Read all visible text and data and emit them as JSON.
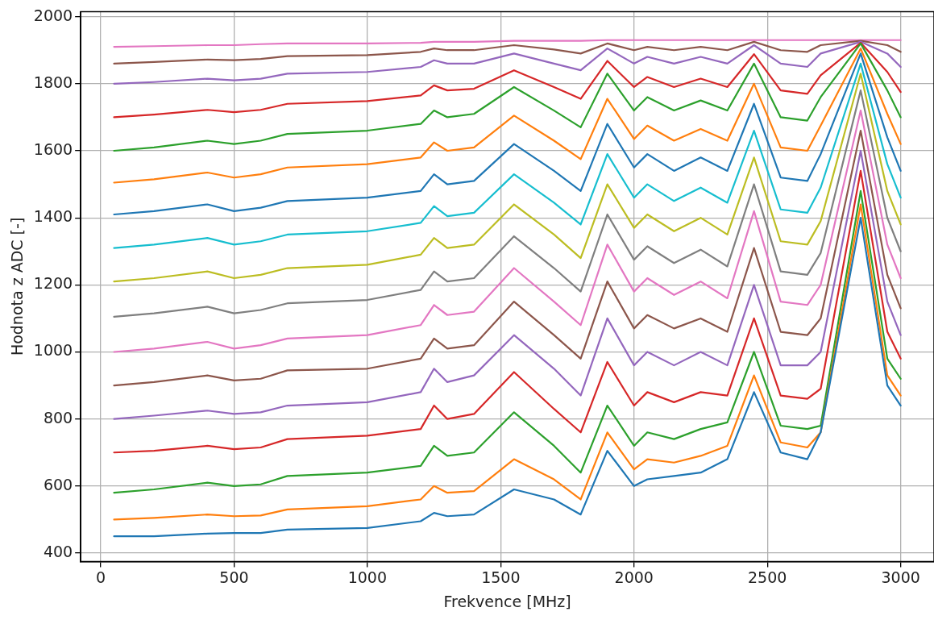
{
  "chart_data": {
    "type": "line",
    "xlabel": "Frekvence [MHz]",
    "ylabel": "Hodnota z ADC [-]",
    "x": [
      50,
      200,
      400,
      500,
      600,
      700,
      1000,
      1200,
      1250,
      1300,
      1400,
      1550,
      1700,
      1800,
      1900,
      2000,
      2050,
      2150,
      2250,
      2350,
      2450,
      2550,
      2650,
      2700,
      2850,
      2950,
      3000
    ],
    "xlim": [
      -75,
      3125
    ],
    "xticks": [
      0,
      500,
      1000,
      1500,
      2000,
      2500,
      3000
    ],
    "ylim": [
      375,
      2015
    ],
    "yticks": [
      400,
      600,
      800,
      1000,
      1200,
      1400,
      1600,
      1800,
      2000
    ],
    "grid": true,
    "legend": false,
    "marker": "none",
    "line_style": "solid",
    "series": [
      {
        "color": "#1f77b4",
        "values": [
          450,
          450,
          458,
          460,
          460,
          470,
          475,
          495,
          520,
          510,
          515,
          590,
          560,
          515,
          705,
          600,
          620,
          630,
          640,
          680,
          880,
          700,
          680,
          760,
          1400,
          900,
          840
        ]
      },
      {
        "color": "#ff7f0e",
        "values": [
          500,
          505,
          515,
          510,
          512,
          530,
          540,
          560,
          600,
          580,
          585,
          680,
          620,
          560,
          760,
          650,
          680,
          670,
          690,
          720,
          930,
          730,
          715,
          760,
          1440,
          930,
          870
        ]
      },
      {
        "color": "#2ca02c",
        "values": [
          580,
          590,
          610,
          600,
          605,
          630,
          640,
          660,
          720,
          690,
          700,
          820,
          720,
          640,
          840,
          720,
          760,
          740,
          770,
          790,
          1000,
          780,
          770,
          780,
          1480,
          980,
          920
        ]
      },
      {
        "color": "#d62728",
        "values": [
          700,
          705,
          720,
          710,
          715,
          740,
          750,
          770,
          840,
          800,
          815,
          940,
          830,
          760,
          970,
          840,
          880,
          850,
          880,
          870,
          1100,
          870,
          860,
          890,
          1540,
          1060,
          980
        ]
      },
      {
        "color": "#9467bd",
        "values": [
          800,
          810,
          825,
          815,
          820,
          840,
          850,
          880,
          950,
          910,
          930,
          1050,
          950,
          870,
          1100,
          960,
          1000,
          960,
          1000,
          960,
          1200,
          960,
          960,
          1000,
          1600,
          1150,
          1050
        ]
      },
      {
        "color": "#8c564b",
        "values": [
          900,
          910,
          930,
          915,
          920,
          945,
          950,
          980,
          1040,
          1010,
          1020,
          1150,
          1050,
          980,
          1210,
          1070,
          1110,
          1070,
          1100,
          1060,
          1310,
          1060,
          1050,
          1100,
          1660,
          1230,
          1130
        ]
      },
      {
        "color": "#e377c2",
        "values": [
          1000,
          1010,
          1030,
          1010,
          1020,
          1040,
          1050,
          1080,
          1140,
          1110,
          1120,
          1250,
          1150,
          1080,
          1320,
          1180,
          1220,
          1170,
          1210,
          1160,
          1420,
          1150,
          1140,
          1200,
          1720,
          1320,
          1220
        ]
      },
      {
        "color": "#7f7f7f",
        "values": [
          1105,
          1115,
          1135,
          1115,
          1125,
          1145,
          1155,
          1185,
          1240,
          1210,
          1220,
          1345,
          1250,
          1180,
          1410,
          1275,
          1315,
          1265,
          1305,
          1255,
          1500,
          1240,
          1230,
          1295,
          1780,
          1400,
          1300
        ]
      },
      {
        "color": "#bcbd22",
        "values": [
          1210,
          1220,
          1240,
          1220,
          1230,
          1250,
          1260,
          1290,
          1340,
          1310,
          1320,
          1440,
          1350,
          1280,
          1500,
          1370,
          1410,
          1360,
          1400,
          1350,
          1580,
          1330,
          1320,
          1390,
          1830,
          1480,
          1380
        ]
      },
      {
        "color": "#17becf",
        "values": [
          1310,
          1320,
          1340,
          1320,
          1330,
          1350,
          1360,
          1385,
          1435,
          1405,
          1415,
          1530,
          1445,
          1380,
          1590,
          1460,
          1500,
          1450,
          1490,
          1445,
          1660,
          1425,
          1415,
          1490,
          1860,
          1560,
          1460
        ]
      },
      {
        "color": "#1f77b4",
        "values": [
          1410,
          1420,
          1440,
          1420,
          1430,
          1450,
          1460,
          1480,
          1530,
          1500,
          1510,
          1620,
          1540,
          1480,
          1680,
          1550,
          1590,
          1540,
          1580,
          1540,
          1740,
          1520,
          1510,
          1590,
          1890,
          1640,
          1540
        ]
      },
      {
        "color": "#ff7f0e",
        "values": [
          1505,
          1515,
          1535,
          1520,
          1530,
          1550,
          1560,
          1580,
          1625,
          1600,
          1610,
          1705,
          1630,
          1575,
          1755,
          1635,
          1675,
          1630,
          1665,
          1630,
          1800,
          1610,
          1600,
          1675,
          1905,
          1710,
          1620
        ]
      },
      {
        "color": "#2ca02c",
        "values": [
          1600,
          1610,
          1630,
          1620,
          1630,
          1650,
          1660,
          1680,
          1720,
          1700,
          1710,
          1790,
          1720,
          1670,
          1830,
          1720,
          1760,
          1720,
          1750,
          1720,
          1860,
          1700,
          1690,
          1760,
          1920,
          1780,
          1700
        ]
      },
      {
        "color": "#d62728",
        "values": [
          1700,
          1708,
          1722,
          1715,
          1722,
          1740,
          1748,
          1765,
          1795,
          1780,
          1785,
          1840,
          1790,
          1755,
          1868,
          1790,
          1820,
          1790,
          1815,
          1790,
          1888,
          1780,
          1770,
          1825,
          1922,
          1835,
          1775
        ]
      },
      {
        "color": "#9467bd",
        "values": [
          1800,
          1805,
          1815,
          1810,
          1815,
          1830,
          1835,
          1850,
          1870,
          1860,
          1860,
          1890,
          1860,
          1840,
          1905,
          1860,
          1880,
          1860,
          1880,
          1860,
          1915,
          1860,
          1850,
          1890,
          1925,
          1890,
          1850
        ]
      },
      {
        "color": "#8c564b",
        "values": [
          1860,
          1865,
          1872,
          1870,
          1874,
          1882,
          1885,
          1895,
          1905,
          1900,
          1900,
          1915,
          1902,
          1890,
          1920,
          1900,
          1910,
          1900,
          1910,
          1900,
          1925,
          1900,
          1895,
          1915,
          1928,
          1915,
          1895
        ]
      },
      {
        "color": "#e377c2",
        "values": [
          1910,
          1912,
          1915,
          1915,
          1918,
          1920,
          1920,
          1922,
          1925,
          1925,
          1925,
          1928,
          1928,
          1928,
          1930,
          1930,
          1930,
          1930,
          1930,
          1930,
          1930,
          1930,
          1930,
          1930,
          1930,
          1930,
          1930
        ]
      }
    ]
  }
}
